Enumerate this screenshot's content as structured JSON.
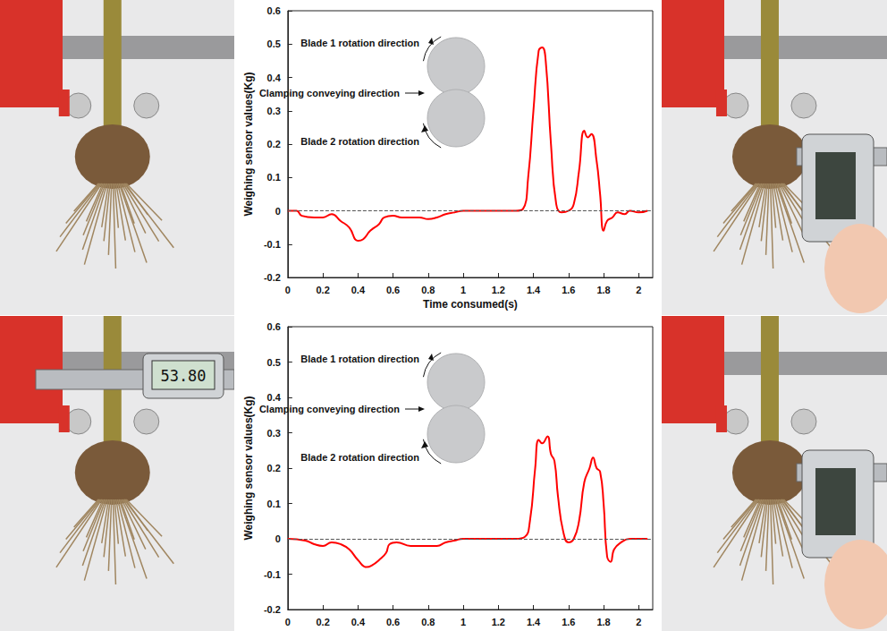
{
  "chart_data": [
    {
      "type": "line",
      "x_label": "Time consumed(s)",
      "y_label": "Weighing sensor values(Kg)",
      "annotations": [
        "Blade 1 rotation direction",
        "Clamping conveying direction",
        "Blade 2 rotation direction"
      ],
      "x": [
        0,
        0.05,
        0.08,
        0.15,
        0.2,
        0.25,
        0.3,
        0.35,
        0.4,
        0.43,
        0.47,
        0.52,
        0.55,
        0.6,
        0.65,
        0.7,
        0.75,
        0.8,
        0.85,
        0.9,
        0.95,
        1.0,
        1.1,
        1.2,
        1.3,
        1.34,
        1.37,
        1.4,
        1.43,
        1.45,
        1.47,
        1.5,
        1.53,
        1.56,
        1.6,
        1.63,
        1.66,
        1.69,
        1.71,
        1.73,
        1.76,
        1.78,
        1.8,
        1.82,
        1.85,
        1.88,
        1.92,
        1.95,
        2.0,
        2.05
      ],
      "values": [
        0,
        0,
        -0.015,
        -0.02,
        -0.02,
        -0.01,
        -0.03,
        -0.05,
        -0.09,
        -0.085,
        -0.06,
        -0.04,
        -0.02,
        -0.015,
        -0.02,
        -0.02,
        -0.02,
        -0.025,
        -0.02,
        -0.01,
        -0.005,
        0,
        0,
        0,
        0,
        0.005,
        0.1,
        0.3,
        0.48,
        0.49,
        0.45,
        0.2,
        0.02,
        -0.005,
        0,
        0.02,
        0.12,
        0.24,
        0.22,
        0.23,
        0.15,
        0.05,
        -0.06,
        -0.03,
        -0.02,
        -0.005,
        -0.01,
        0,
        -0.005,
        0
      ],
      "color": "#ff0000",
      "baseline": 0,
      "xlim": [
        0,
        2.08
      ],
      "xticks": [
        0,
        0.2,
        0.4,
        0.6,
        0.8,
        1,
        1.2,
        1.4,
        1.6,
        1.8,
        2
      ],
      "ylim": [
        -0.2,
        0.6
      ],
      "yticks": [
        -0.2,
        -0.1,
        0,
        0.1,
        0.2,
        0.3,
        0.4,
        0.5,
        0.6
      ],
      "grid": false
    },
    {
      "type": "line",
      "y_label": "Weighing sensor values(Kg)",
      "annotations": [
        "Blade 1 rotation direction",
        "Clamping conveying direction",
        "Blade 2 rotation direction"
      ],
      "x": [
        0,
        0.1,
        0.15,
        0.2,
        0.25,
        0.3,
        0.35,
        0.4,
        0.45,
        0.48,
        0.52,
        0.56,
        0.58,
        0.62,
        0.7,
        0.8,
        0.85,
        0.9,
        0.95,
        1.0,
        1.2,
        1.3,
        1.35,
        1.38,
        1.41,
        1.43,
        1.45,
        1.48,
        1.5,
        1.52,
        1.54,
        1.57,
        1.6,
        1.63,
        1.66,
        1.69,
        1.72,
        1.74,
        1.76,
        1.78,
        1.8,
        1.82,
        1.84,
        1.86,
        1.9,
        1.95,
        2.0,
        2.05
      ],
      "values": [
        0,
        -0.005,
        -0.015,
        -0.02,
        -0.01,
        -0.015,
        -0.03,
        -0.06,
        -0.08,
        -0.075,
        -0.06,
        -0.04,
        -0.015,
        -0.01,
        -0.02,
        -0.02,
        -0.02,
        -0.01,
        -0.005,
        0,
        0,
        0,
        0.005,
        0.05,
        0.2,
        0.28,
        0.27,
        0.29,
        0.24,
        0.22,
        0.12,
        0.02,
        -0.01,
        0,
        0.05,
        0.16,
        0.2,
        0.23,
        0.2,
        0.19,
        0.1,
        -0.05,
        -0.065,
        -0.03,
        -0.01,
        0,
        0,
        0
      ],
      "color": "#ff0000",
      "baseline": 0,
      "xlim": [
        0,
        2.08
      ],
      "xticks": [
        0,
        0.2,
        0.4,
        0.6,
        0.8,
        1,
        1.2,
        1.4,
        1.6,
        1.8,
        2
      ],
      "ylim": [
        -0.2,
        0.6
      ],
      "yticks": [
        -0.2,
        -0.1,
        0,
        0.1,
        0.2,
        0.3,
        0.4,
        0.5,
        0.6
      ],
      "grid": false
    }
  ],
  "photos": {
    "bottom_left": {
      "caliper_reading": "53.80"
    }
  }
}
